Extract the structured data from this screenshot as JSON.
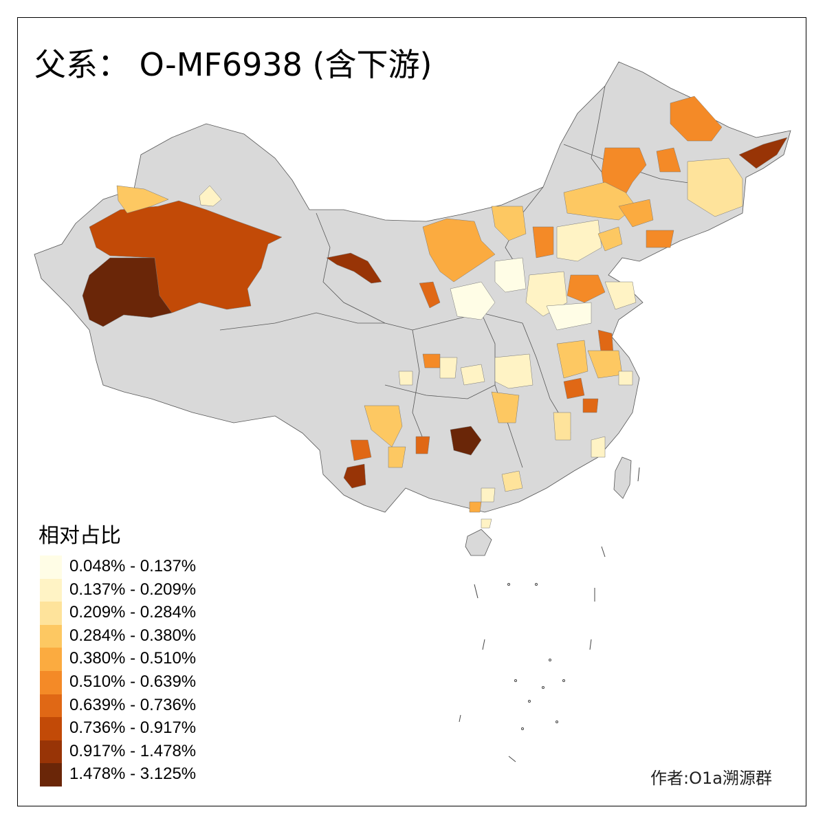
{
  "title": "父系： O-MF6938 (含下游)",
  "legend": {
    "title": "相对占比",
    "items": [
      {
        "label": "0.048% - 0.137%",
        "color": "#fffde6"
      },
      {
        "label": "0.137% - 0.209%",
        "color": "#fff3c5"
      },
      {
        "label": "0.209% - 0.284%",
        "color": "#fee39b"
      },
      {
        "label": "0.284% - 0.380%",
        "color": "#fdc862"
      },
      {
        "label": "0.380% - 0.510%",
        "color": "#fbab40"
      },
      {
        "label": "0.510% - 0.639%",
        "color": "#f48a27"
      },
      {
        "label": "0.639% - 0.736%",
        "color": "#e06815"
      },
      {
        "label": "0.736% - 0.917%",
        "color": "#c24a07"
      },
      {
        "label": "0.917% - 1.478%",
        "color": "#983406"
      },
      {
        "label": "1.478% - 3.125%",
        "color": "#6a2608"
      }
    ]
  },
  "credit": "作者:O1a溯源群",
  "colors": {
    "no_data": "#d9d9d9",
    "boundary": "#555555",
    "background": "#ffffff"
  }
}
